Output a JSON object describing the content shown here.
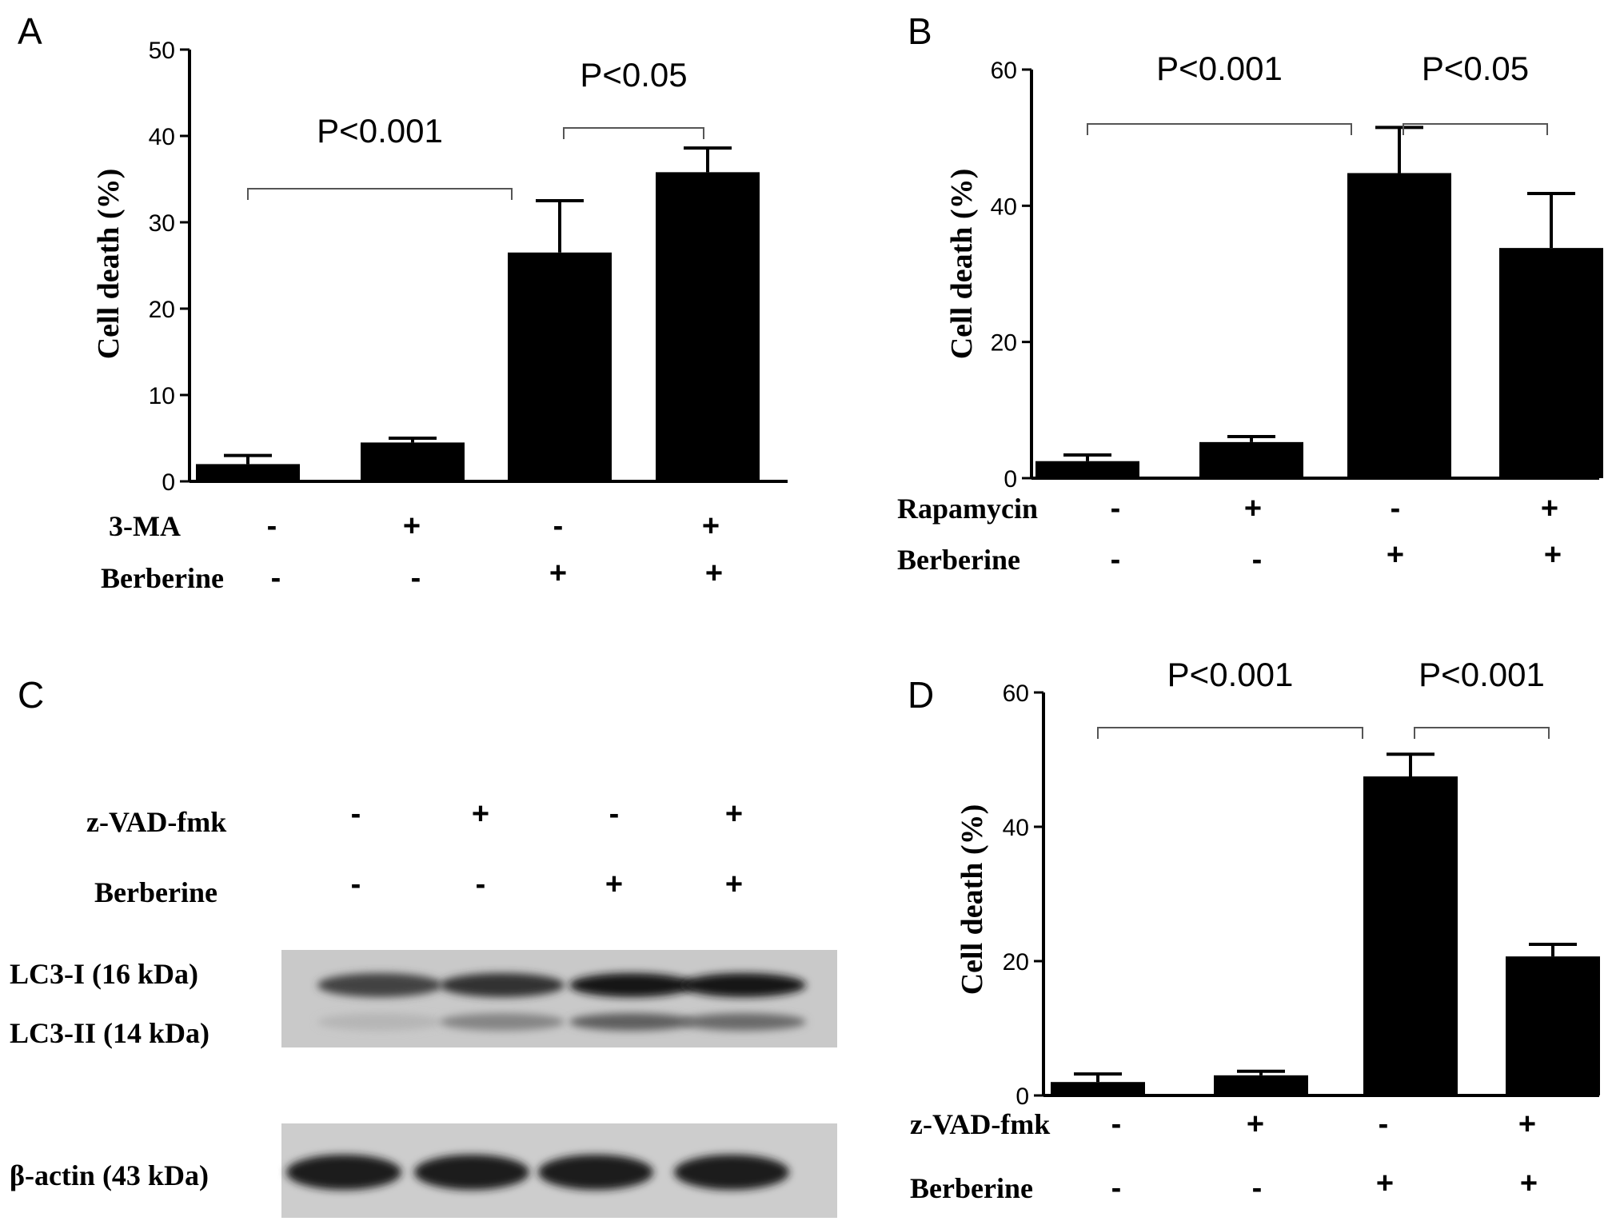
{
  "chart_data": [
    {
      "panel": "A",
      "type": "bar",
      "ylabel": "Cell death (%)",
      "ylim": [
        0,
        50
      ],
      "yticks": [
        "0",
        "10",
        "20",
        "30",
        "40",
        "50"
      ],
      "values": [
        2.0,
        4.5,
        26.5,
        35.8
      ],
      "errors": [
        1.0,
        0.5,
        6.0,
        2.8
      ],
      "conditions": [
        {
          "label": "3-MA",
          "signs": [
            "-",
            "+",
            "-",
            "+"
          ]
        },
        {
          "label": "Berberine",
          "signs": [
            "-",
            "-",
            "+",
            "+"
          ]
        }
      ],
      "brackets": [
        {
          "from": 0,
          "to": 2,
          "label": "P<0.001"
        },
        {
          "from": 2,
          "to": 3,
          "label": "P<0.05"
        }
      ]
    },
    {
      "panel": "B",
      "type": "bar",
      "ylabel": "Cell death (%)",
      "ylim": [
        0,
        60
      ],
      "yticks": [
        "0",
        "20",
        "40",
        "60"
      ],
      "values": [
        2.5,
        5.3,
        44.8,
        33.8
      ],
      "errors": [
        0.9,
        0.8,
        6.7,
        8.0
      ],
      "conditions": [
        {
          "label": "Rapamycin",
          "signs": [
            "-",
            "+",
            "-",
            "+"
          ]
        },
        {
          "label": "Berberine",
          "signs": [
            "-",
            "-",
            "+",
            "+"
          ]
        }
      ],
      "brackets": [
        {
          "from": 0,
          "to": 2,
          "label": "P<0.001"
        },
        {
          "from": 2,
          "to": 3,
          "label": "P<0.05"
        }
      ]
    },
    {
      "panel": "D",
      "type": "bar",
      "ylabel": "Cell death (%)",
      "ylim": [
        0,
        60
      ],
      "yticks": [
        "0",
        "20",
        "40",
        "60"
      ],
      "values": [
        2.0,
        3.0,
        47.5,
        20.7
      ],
      "errors": [
        1.2,
        0.6,
        3.3,
        1.8
      ],
      "conditions": [
        {
          "label": "z-VAD-fmk",
          "signs": [
            "-",
            "+",
            "-",
            "+"
          ]
        },
        {
          "label": "Berberine",
          "signs": [
            "-",
            "-",
            "+",
            "+"
          ]
        }
      ],
      "brackets": [
        {
          "from": 0,
          "to": 2,
          "label": "P<0.001"
        },
        {
          "from": 2,
          "to": 3,
          "label": "P<0.001"
        }
      ]
    }
  ],
  "western_blot": {
    "panel": "C",
    "conditions": [
      {
        "label": "z-VAD-fmk",
        "signs": [
          "-",
          "+",
          "-",
          "+"
        ]
      },
      {
        "label": "Berberine",
        "signs": [
          "-",
          "-",
          "+",
          "+"
        ]
      }
    ],
    "band_labels": {
      "lc3_i": "LC3-I (16 kDa)",
      "lc3_ii": "LC3-II (14 kDa)",
      "actin": "β-actin (43 kDa)"
    },
    "lc3_i_intensity": [
      0.7,
      0.8,
      0.92,
      0.95
    ],
    "lc3_ii_intensity": [
      0.12,
      0.45,
      0.7,
      0.62
    ],
    "actin_intensity": [
      0.9,
      0.9,
      0.9,
      0.9
    ]
  }
}
